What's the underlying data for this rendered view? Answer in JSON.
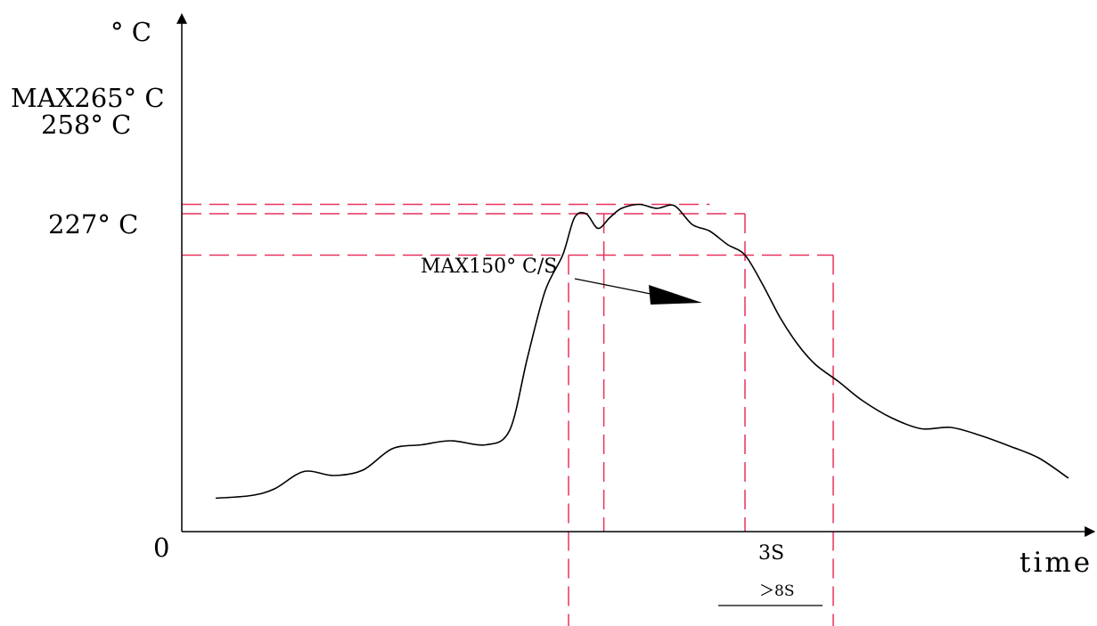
{
  "chart_data": {
    "type": "line",
    "title": "",
    "ylabel": "° C",
    "xlabel": "time",
    "origin_label": "0",
    "y_ticks": [
      {
        "value": 265,
        "label": "MAX265° C"
      },
      {
        "value": 258,
        "label": "258° C"
      },
      {
        "value": 227,
        "label": "227° C"
      }
    ],
    "reference_lines": {
      "horizontal": [
        {
          "value": 265,
          "x_end": 8.4
        },
        {
          "value": 258,
          "x_end": 9.0
        },
        {
          "value": 227,
          "x_end": 10.5
        }
      ],
      "vertical_t": [
        6.0,
        6.6,
        9.0,
        10.5
      ]
    },
    "annotations": {
      "slope": "MAX150° C/S",
      "dwell_3s": "3S",
      "dwell_8s": "＞8S"
    },
    "series": [
      {
        "x": [
          0.0,
          0.6,
          1.0,
          1.5,
          2.0,
          2.5,
          3.0,
          3.5,
          4.0,
          4.6,
          5.0,
          5.3,
          5.6,
          5.9,
          6.1,
          6.3,
          6.5,
          6.7,
          6.9,
          7.2,
          7.5,
          7.8,
          8.1,
          8.4,
          8.7,
          9.0,
          9.3,
          9.6,
          9.9,
          10.2,
          10.6,
          11.0,
          11.5,
          12.0,
          12.5,
          13.0,
          13.5,
          14.0,
          14.5
        ],
        "y": [
          45,
          47,
          52,
          65,
          62,
          66,
          82,
          85,
          88,
          85,
          96,
          150,
          200,
          227,
          255,
          258,
          247,
          255,
          262,
          265,
          262,
          264,
          250,
          245,
          235,
          227,
          205,
          180,
          160,
          145,
          132,
          118,
          105,
          97,
          98,
          92,
          84,
          75,
          60
        ]
      }
    ],
    "xlim": [
      -0.5,
      15
    ],
    "ylim": [
      0,
      275
    ],
    "grid": false,
    "colors": {
      "axis": "#000000",
      "curve": "#000000",
      "reference": "#e8305a"
    }
  }
}
